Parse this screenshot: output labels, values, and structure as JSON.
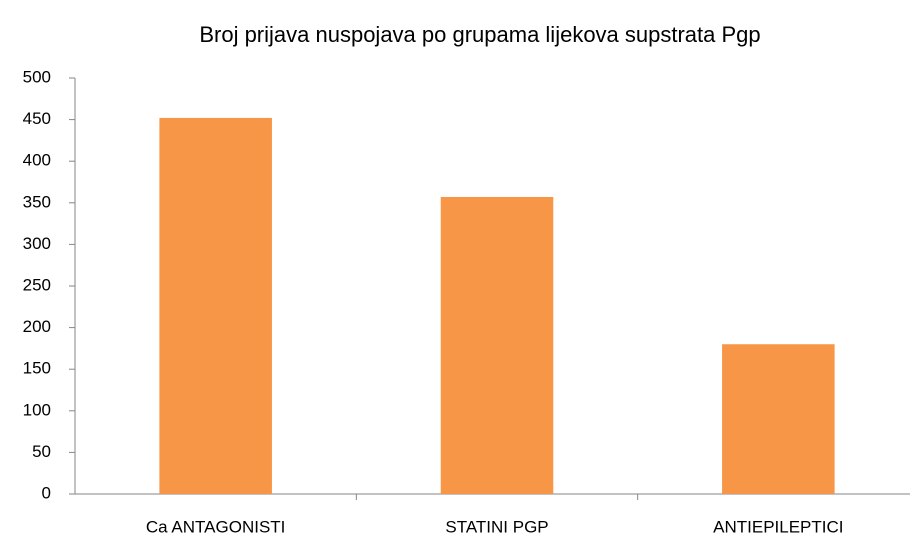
{
  "chart_data": {
    "type": "bar",
    "title": "Broj prijava nuspojava po grupama lijekova supstrata Pgp",
    "categories": [
      "Ca ANTAGONISTI",
      "STATINI PGP",
      "ANTIEPILEPTICI"
    ],
    "values": [
      452,
      357,
      180
    ],
    "color": "#f79646",
    "ylim": [
      0,
      500
    ],
    "yticks": [
      0,
      50,
      100,
      150,
      200,
      250,
      300,
      350,
      400,
      450,
      500
    ],
    "grid": false
  }
}
